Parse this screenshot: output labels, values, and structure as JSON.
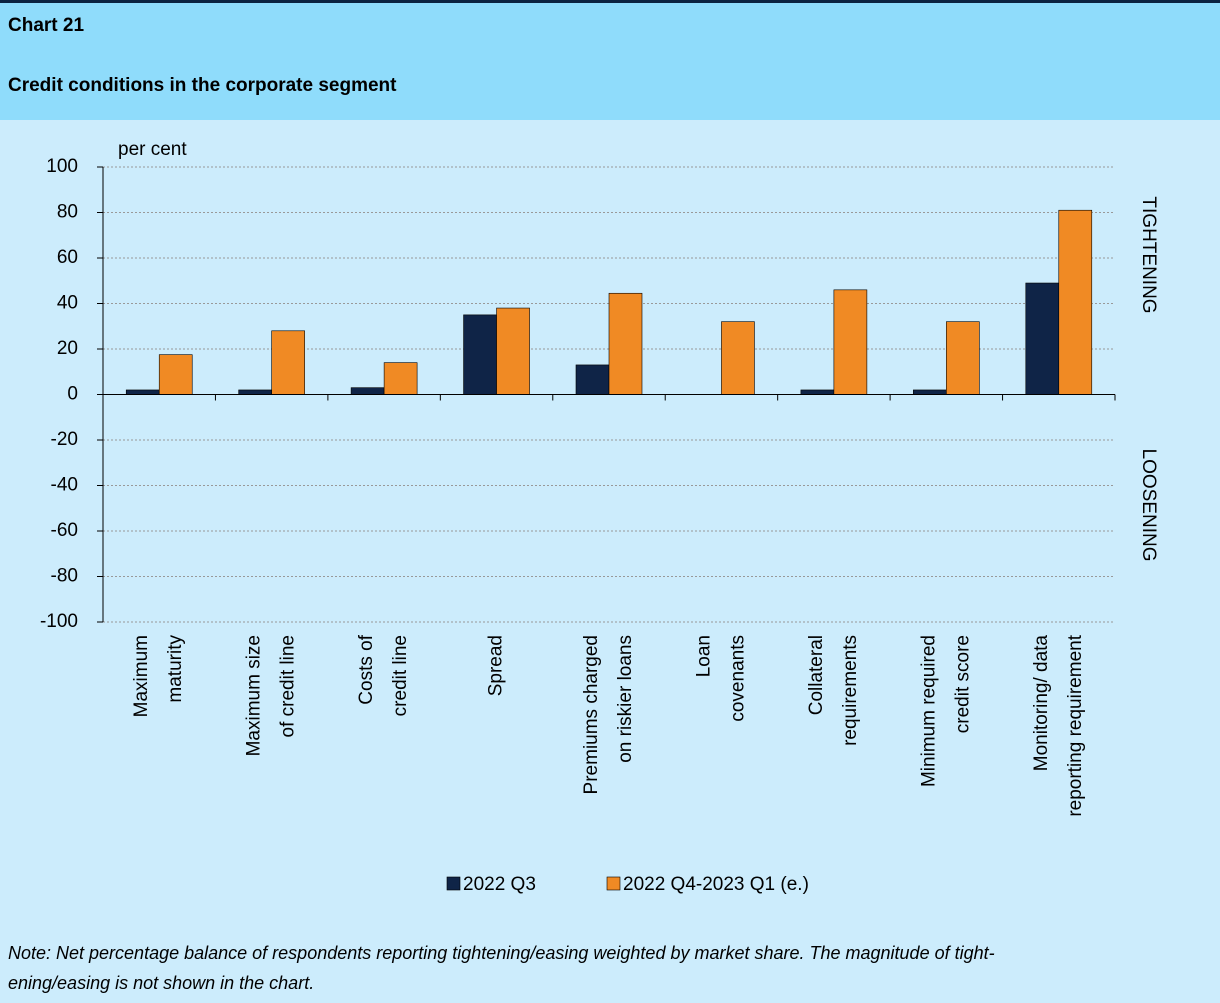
{
  "chart_data": {
    "type": "bar",
    "title": "Chart 21",
    "subtitle": "Credit conditions in the corporate segment",
    "y_label": "per cent",
    "side_labels": [
      "TIGHTENING",
      "LOOSENING"
    ],
    "categories": [
      [
        "Maximum",
        "maturity"
      ],
      [
        "Maximum size",
        "of credit line"
      ],
      [
        "Costs of",
        "credit line"
      ],
      [
        "Spread"
      ],
      [
        "Premiums charged",
        "on riskier loans"
      ],
      [
        "Loan",
        "covenants"
      ],
      [
        "Collateral",
        "requirements"
      ],
      [
        "Minimum required",
        "credit score"
      ],
      [
        "Monitoring/ data",
        "reporting requirement"
      ]
    ],
    "series": [
      {
        "name": "2022 Q3",
        "color": "#0f2447",
        "values": [
          2,
          2,
          3,
          35,
          13,
          0,
          2,
          2,
          49
        ]
      },
      {
        "name": "2022 Q4-2023 Q1 (e.)",
        "color": "#f08a24",
        "values": [
          17.5,
          28,
          14,
          38,
          44.5,
          32,
          46,
          32,
          81
        ]
      }
    ],
    "ylim": [
      -100,
      100
    ],
    "yticks": [
      -100,
      -80,
      -60,
      -40,
      -20,
      0,
      20,
      40,
      60,
      80,
      100
    ],
    "grid": true,
    "note": [
      "Note: Net percentage balance of respondents reporting tightening/easing weighted by market share. The magnitude of tight-",
      "ening/easing is not shown in the chart."
    ]
  }
}
